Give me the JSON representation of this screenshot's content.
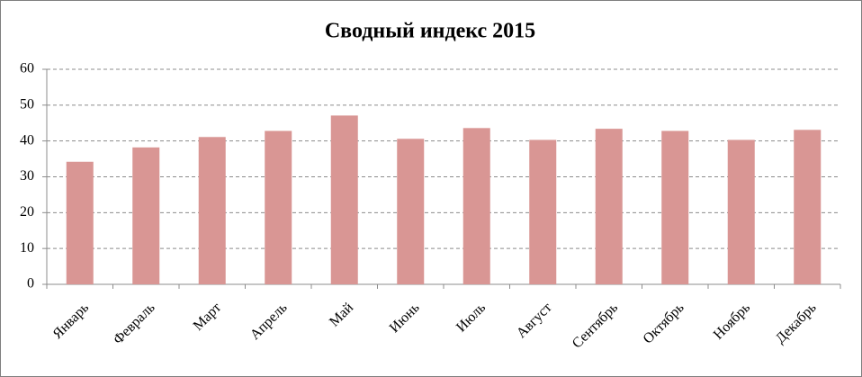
{
  "chart_data": {
    "type": "bar",
    "title": "Сводный индекс 2015",
    "categories": [
      "Январь",
      "Февраль",
      "Март",
      "Апрель",
      "Май",
      "Июнь",
      "Июль",
      "Август",
      "Сентябрь",
      "Октябрь",
      "Ноябрь",
      "Декабрь"
    ],
    "values": [
      34.2,
      38.2,
      41.1,
      42.8,
      47.1,
      40.6,
      43.6,
      40.3,
      43.4,
      42.8,
      40.3,
      43.1
    ],
    "color": "#d99694",
    "ylim": [
      0,
      60
    ],
    "yticks": [
      0,
      10,
      20,
      30,
      40,
      50,
      60
    ],
    "grid": true
  }
}
